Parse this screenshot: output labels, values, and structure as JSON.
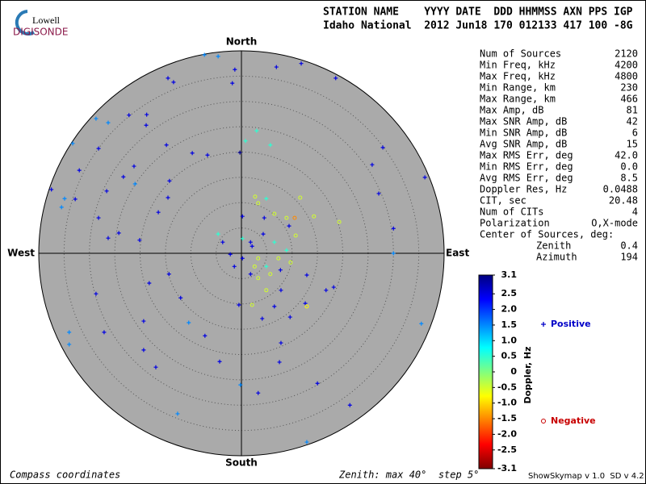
{
  "chart_data": {
    "type": "skymap",
    "logo": {
      "top": "Lowell",
      "bottom": "DIGISONDE"
    },
    "header": [
      "STATION NAME    YYYY DATE  DDD HHMMSS AXN PPS IGP",
      "Idaho National  2012 Jun18 170 012133 417 100 -8G"
    ],
    "directions": {
      "north": "North",
      "south": "South",
      "east": "East",
      "west": "West"
    },
    "rlim": [
      0,
      40
    ],
    "rticks": [
      5,
      10,
      15,
      20,
      25,
      30,
      35,
      40
    ],
    "parameters": [
      [
        "Num of Sources",
        "2120"
      ],
      [
        "Min Freq, kHz",
        "4200"
      ],
      [
        "Max Freq, kHz",
        "4800"
      ],
      [
        "Min Range, km",
        "230"
      ],
      [
        "Max Range, km",
        "466"
      ],
      [
        "Max Amp, dB",
        "81"
      ],
      [
        "Max SNR Amp, dB",
        "42"
      ],
      [
        "Min SNR Amp, dB",
        "6"
      ],
      [
        "Avg SNR Amp, dB",
        "15"
      ],
      [
        "Max RMS Err, deg",
        "42.0"
      ],
      [
        "Min RMS Err, deg",
        "0.0"
      ],
      [
        "Avg RMS Err, deg",
        "8.5"
      ],
      [
        "Doppler Res, Hz",
        "0.0488"
      ],
      [
        "CIT, sec",
        "20.48"
      ],
      [
        "Num of CITs",
        "4"
      ],
      [
        "Polarization",
        "O,X-mode"
      ]
    ],
    "center_title": "Center of Sources, deg:",
    "center": [
      [
        "Zenith",
        "0.4"
      ],
      [
        "Azimuth",
        "194"
      ]
    ],
    "colorbar": {
      "label": "Doppler, Hz",
      "lim": [
        -3.1,
        3.1
      ],
      "ticks": [
        3.1,
        2.5,
        {
          "value": 2,
          "label": "2.0"
        },
        1.5,
        {
          "value": 1,
          "label": "1.0"
        },
        0.5,
        0,
        -0.5,
        {
          "value": -1,
          "label": "-1.0"
        },
        -1.5,
        {
          "value": -2,
          "label": "-2.0"
        },
        -2.5,
        -3.1
      ]
    },
    "series": [
      {
        "name": "Positive",
        "color": "#0000c8",
        "marker": "+",
        "x": [
          -7.3,
          -4.6,
          -14.5,
          -13.4,
          -28.7,
          -26.3,
          -22.2,
          -18.7,
          -18.8,
          -33.3,
          -28.2,
          -32.0,
          -14.8,
          -9.7,
          -6.7,
          -0.3,
          -1.8,
          -1.3,
          6.9,
          11.8,
          18.6,
          27.9,
          25.8,
          36.2,
          27.1,
          30.0,
          30.0,
          -37.5,
          -34.9,
          -35.5,
          -32.8,
          -26.6,
          -21.0,
          -23.3,
          -21.2,
          -14.2,
          -14.5,
          -28.2,
          -24.2,
          -26.3,
          -20.1,
          -16.4,
          -14.3,
          -18.2,
          -28.7,
          -12.0,
          -19.3,
          -27.1,
          -10.4,
          -7.2,
          -34.0,
          -34.0,
          -19.3,
          -16.9,
          -4.3,
          -0.2,
          3.3,
          7.8,
          7.5,
          15.0,
          21.4,
          12.9,
          -12.6,
          35.5,
          18.2,
          16.7,
          12.9,
          12.6,
          9.6,
          4.9,
          3.0,
          0.8,
          5.7,
          4.3,
          6.5,
          1.8,
          0.2,
          -2.2,
          4.9,
          8.9,
          1.8,
          -0.5,
          0.2,
          -4.6,
          -3.7,
          7.7,
          -1.4,
          2.1,
          9.4,
          0.2,
          4.5,
          6.5,
          7.8,
          4.1
        ],
        "y": [
          39.2,
          38.9,
          34.6,
          33.8,
          26.6,
          25.8,
          27.3,
          27.4,
          25.3,
          21.7,
          20.7,
          16.4,
          21.4,
          19.8,
          19.4,
          19.9,
          33.6,
          36.3,
          36.8,
          37.5,
          34.6,
          20.9,
          17.5,
          15.0,
          11.8,
          4.9,
          0,
          12.6,
          10.8,
          9.1,
          10.7,
          12.3,
          13.7,
          15.1,
          17.2,
          14.3,
          11.0,
          7.0,
          4.0,
          3.0,
          2.6,
          8.1,
          -4.1,
          -5.9,
          -8.0,
          -8.8,
          -13.4,
          -15.6,
          -13.7,
          -16.3,
          -15.6,
          -18.0,
          -19.1,
          -22.5,
          -21.4,
          -26.0,
          -27.6,
          -17.7,
          -21.5,
          -25.7,
          -30.0,
          -37.3,
          -31.7,
          -13.9,
          -6.7,
          -7.3,
          -4.3,
          -9.9,
          -12.6,
          10.8,
          24.2,
          22.2,
          21.4,
          3.8,
          2.2,
          2.2,
          -1.0,
          -0.2,
          -2.6,
          0.6,
          -4.1,
          -10.2,
          2.9,
          3.8,
          2.2,
          -3.3,
          -2.6,
          1.4,
          5.4,
          7.3,
          7.0,
          -10.5,
          -7.3,
          -12.9
        ],
        "doppler": [
          1.5,
          1.5,
          2.5,
          2.5,
          1.5,
          1.5,
          2.5,
          2.5,
          2.5,
          1.5,
          2.5,
          2.5,
          2.5,
          2.5,
          2.5,
          3.0,
          2.5,
          2.5,
          2.5,
          2.5,
          2.5,
          2.5,
          2.5,
          2.5,
          2.5,
          2.5,
          1.5,
          2.5,
          1.5,
          1.5,
          2.5,
          2.5,
          1.5,
          2.5,
          2.5,
          2.5,
          2.5,
          2.5,
          2.5,
          2.5,
          2.5,
          2.5,
          2.5,
          2.5,
          2.5,
          2.5,
          2.5,
          2.5,
          1.5,
          2.5,
          1.5,
          1.5,
          2.5,
          2.5,
          2.5,
          1.5,
          2.5,
          2.5,
          2.5,
          2.5,
          2.5,
          1.5,
          1.5,
          1.5,
          2.5,
          2.5,
          2.5,
          2.5,
          2.5,
          0.5,
          0.5,
          0.5,
          0.5,
          2.5,
          0.5,
          2.5,
          2.5,
          2.5,
          0.5,
          0.5,
          2.5,
          2.5,
          0.5,
          0.5,
          2.5,
          2.5,
          2.5,
          2.5,
          2.5,
          2.5,
          2.5,
          2.5,
          2.5,
          2.5
        ]
      },
      {
        "name": "Negative",
        "color": "#c80000",
        "marker": "o",
        "x": [
          3.3,
          6.5,
          8.9,
          10.5,
          19.3,
          14.3,
          2.7,
          3.3,
          7.3,
          9.7,
          5.7,
          3.3,
          2.1,
          4.9,
          10.7,
          2.6,
          11.6,
          12.9
        ],
        "y": [
          9.9,
          7.8,
          7.0,
          7.0,
          6.2,
          7.3,
          11.2,
          -1.0,
          -1.0,
          -1.8,
          -4.1,
          -4.9,
          -10.2,
          -7.3,
          3.5,
          -2.6,
          11.0,
          -10.5
        ],
        "doppler": [
          -0.5,
          -0.5,
          -0.5,
          -1.5,
          -0.5,
          -0.5,
          -0.5,
          -0.5,
          -0.5,
          -0.5,
          -0.5,
          -0.5,
          -0.5,
          -0.5,
          -0.5,
          -0.5,
          -0.5,
          -0.8
        ]
      }
    ],
    "footer": {
      "left": "Compass coordinates",
      "middle": "Zenith: max 40°  step 5°",
      "right": "ShowSkymap v 1.0  SD v 4.2"
    }
  }
}
